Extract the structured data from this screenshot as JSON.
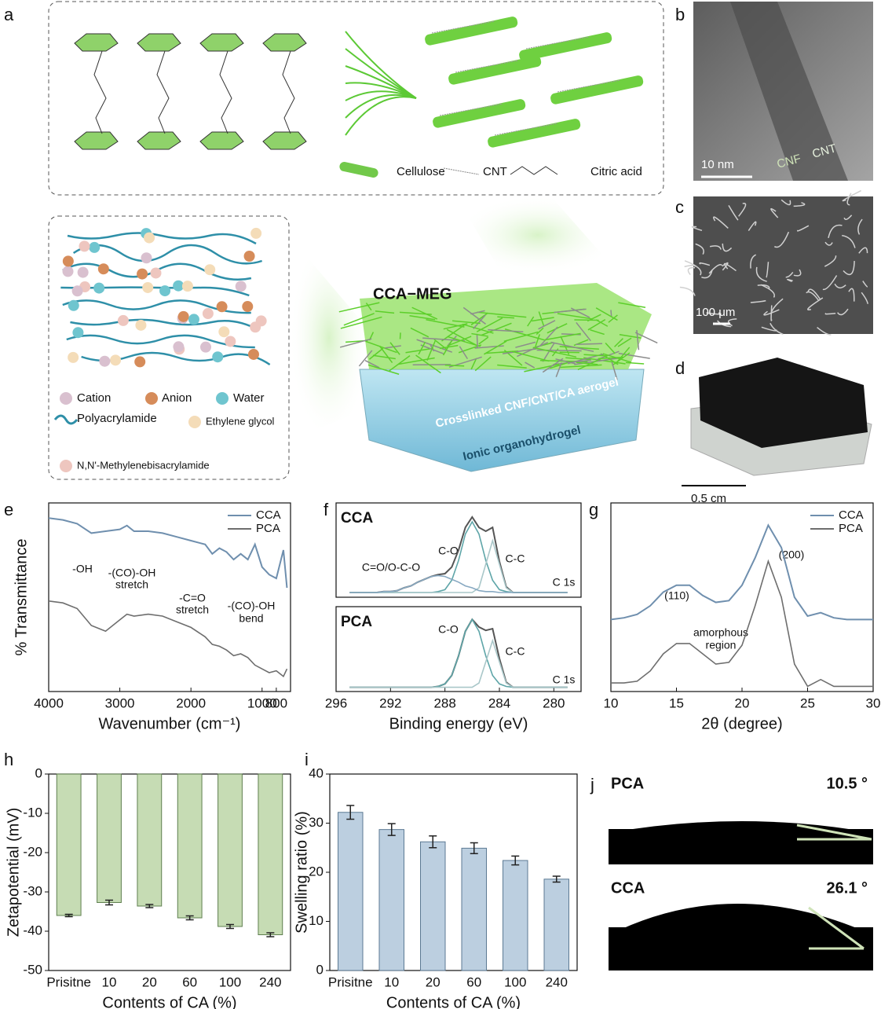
{
  "panels": {
    "a": {
      "label": "a",
      "legend_top": [
        "Cellulose",
        "CNT",
        "Citric acid"
      ],
      "device_title": "CCA−MEG",
      "aerogel_label": "Crosslinked CNF/CNT/CA aerogel",
      "gel_label": "Ionic organohydrogel",
      "legend_bottom": [
        "Cation",
        "Anion",
        "Water",
        "Polyacrylamide",
        "Ethylene glycol",
        "N,N'-Methylenebisacrylamide"
      ]
    },
    "b": {
      "label": "b",
      "scale": "10 nm",
      "tags": [
        "CNF",
        "CNT"
      ]
    },
    "c": {
      "label": "c",
      "scale": "100 μm"
    },
    "d": {
      "label": "d",
      "scale": "0.5 cm"
    },
    "j": {
      "label": "j",
      "rows": [
        {
          "name": "PCA",
          "angle": "10.5 °"
        },
        {
          "name": "CCA",
          "angle": "26.1 °"
        }
      ]
    }
  },
  "chart_data": [
    {
      "panel_label": "e",
      "type": "line",
      "x_label": "Wavenumber (cm⁻¹)",
      "y_label": "% Transmittance",
      "x": [
        4000,
        3800,
        3600,
        3400,
        3200,
        3000,
        2900,
        2800,
        2600,
        2400,
        2200,
        2000,
        1800,
        1700,
        1600,
        1500,
        1400,
        1300,
        1200,
        1100,
        1000,
        900,
        800,
        700,
        650
      ],
      "xlim": [
        4000,
        600
      ],
      "xticks": [
        4000,
        3000,
        2000,
        1000,
        800
      ],
      "ylim": [
        0,
        1
      ],
      "legend": "upper right",
      "series": [
        {
          "name": "CCA",
          "color": "#6f8fae",
          "values": [
            0.92,
            0.91,
            0.89,
            0.84,
            0.85,
            0.86,
            0.88,
            0.85,
            0.85,
            0.84,
            0.82,
            0.8,
            0.78,
            0.73,
            0.76,
            0.74,
            0.7,
            0.73,
            0.7,
            0.78,
            0.66,
            0.62,
            0.6,
            0.75,
            0.55
          ]
        },
        {
          "name": "PCA",
          "color": "#6e6e6e",
          "values": [
            0.48,
            0.47,
            0.44,
            0.35,
            0.32,
            0.38,
            0.41,
            0.4,
            0.41,
            0.4,
            0.37,
            0.34,
            0.29,
            0.25,
            0.24,
            0.22,
            0.19,
            0.2,
            0.18,
            0.14,
            0.12,
            0.1,
            0.11,
            0.08,
            0.12
          ]
        }
      ],
      "annotations": [
        "-OH",
        "-(CO)-OH",
        "stretch",
        "-C=O",
        "stretch",
        "-(CO)-OH",
        "bend"
      ]
    },
    {
      "panel_label": "f",
      "type": "line",
      "title": "CCA",
      "x": [
        295,
        294.5,
        294,
        293.5,
        293,
        292.5,
        292,
        291.5,
        291,
        290.5,
        290,
        289.5,
        289,
        288.5,
        288,
        287.5,
        287,
        286.5,
        286,
        285.5,
        285,
        284.5,
        284,
        283.5,
        283,
        282.5,
        282,
        281.5,
        281,
        280.5,
        280,
        279.5,
        279
      ],
      "xlim": [
        296,
        278
      ],
      "ylim": [
        -0.05,
        0.95
      ],
      "series": [
        {
          "color": "#555555",
          "values": [
            0,
            0,
            0,
            0,
            0,
            0.01,
            0.01,
            0.02,
            0.05,
            0.07,
            0.11,
            0.14,
            0.17,
            0.19,
            0.2,
            0.27,
            0.45,
            0.69,
            0.8,
            0.69,
            0.65,
            0.69,
            0.33,
            0.06,
            0,
            0,
            0,
            0,
            0,
            0,
            0,
            0,
            0
          ]
        },
        {
          "color": "#5ea5a8",
          "values": [
            0,
            0,
            0,
            0,
            0,
            0,
            0,
            0,
            0,
            0,
            0,
            0,
            0,
            0.01,
            0.03,
            0.13,
            0.34,
            0.62,
            0.75,
            0.62,
            0.34,
            0.13,
            0.03,
            0.01,
            0,
            0,
            0,
            0,
            0,
            0,
            0,
            0,
            0
          ]
        },
        {
          "color": "#a9c7c9",
          "values": [
            0,
            0,
            0,
            0,
            0,
            0,
            0,
            0,
            0,
            0,
            0,
            0,
            0,
            0,
            0,
            0,
            0,
            0,
            0,
            0.05,
            0.3,
            0.55,
            0.3,
            0.05,
            0,
            0,
            0,
            0,
            0,
            0,
            0,
            0,
            0
          ]
        },
        {
          "color": "#88a9c2",
          "values": [
            0,
            0,
            0,
            0,
            0,
            0.01,
            0.01,
            0.02,
            0.05,
            0.07,
            0.11,
            0.14,
            0.17,
            0.18,
            0.17,
            0.14,
            0.11,
            0.07,
            0.05,
            0.02,
            0.01,
            0.01,
            0,
            0,
            0,
            0,
            0,
            0,
            0,
            0,
            0,
            0,
            0
          ]
        }
      ],
      "annotations": [
        "C-O",
        "C-C",
        "C=O/O-C-O",
        "C 1s"
      ]
    },
    {
      "type": "line",
      "title": "PCA",
      "x_label": "Binding energy (eV)",
      "x": [
        295,
        294.5,
        294,
        293.5,
        293,
        292.5,
        292,
        291.5,
        291,
        290.5,
        290,
        289.5,
        289,
        288.5,
        288,
        287.5,
        287,
        286.5,
        286,
        285.5,
        285,
        284.5,
        284,
        283.5,
        283,
        282.5,
        282,
        281.5,
        281,
        280.5,
        280,
        279.5,
        279
      ],
      "xlim": [
        296,
        278
      ],
      "xticks": [
        296,
        292,
        288,
        284,
        280
      ],
      "ylim": [
        -0.05,
        0.95
      ],
      "series": [
        {
          "color": "#555555",
          "values": [
            0,
            0,
            0,
            0,
            0,
            0,
            0,
            0,
            0,
            0,
            0,
            0,
            0,
            0.01,
            0.04,
            0.14,
            0.37,
            0.66,
            0.8,
            0.71,
            0.67,
            0.69,
            0.34,
            0.06,
            0,
            0,
            0,
            0,
            0,
            0,
            0,
            0,
            0
          ]
        },
        {
          "color": "#5ea5a8",
          "values": [
            0,
            0,
            0,
            0,
            0,
            0,
            0,
            0,
            0,
            0,
            0,
            0,
            0,
            0.01,
            0.04,
            0.14,
            0.37,
            0.66,
            0.8,
            0.66,
            0.37,
            0.14,
            0.04,
            0.01,
            0,
            0,
            0,
            0,
            0,
            0,
            0,
            0,
            0
          ]
        },
        {
          "color": "#a9c7c9",
          "values": [
            0,
            0,
            0,
            0,
            0,
            0,
            0,
            0,
            0,
            0,
            0,
            0,
            0,
            0,
            0,
            0,
            0,
            0,
            0,
            0.05,
            0.3,
            0.55,
            0.3,
            0.05,
            0,
            0,
            0,
            0,
            0,
            0,
            0,
            0,
            0
          ]
        }
      ],
      "annotations": [
        "C-O",
        "C-C",
        "C 1s"
      ]
    },
    {
      "panel_label": "g",
      "type": "line",
      "x_label": "2θ (degree)",
      "x": [
        10,
        11,
        12,
        13,
        14,
        15,
        16,
        17,
        18,
        19,
        20,
        21,
        22,
        23,
        24,
        25,
        26,
        27,
        28,
        29,
        30
      ],
      "xlim": [
        10,
        30
      ],
      "xticks": [
        10,
        15,
        20,
        25,
        30
      ],
      "ylim": [
        0,
        1.1
      ],
      "legend": "upper right",
      "series": [
        {
          "name": "CCA",
          "color": "#6f8fae",
          "values": [
            0.42,
            0.43,
            0.45,
            0.5,
            0.58,
            0.62,
            0.62,
            0.56,
            0.52,
            0.53,
            0.62,
            0.78,
            0.97,
            0.84,
            0.55,
            0.44,
            0.46,
            0.43,
            0.42,
            0.42,
            0.42
          ]
        },
        {
          "name": "PCA",
          "color": "#6e6e6e",
          "values": [
            0.05,
            0.05,
            0.06,
            0.12,
            0.22,
            0.28,
            0.28,
            0.22,
            0.16,
            0.17,
            0.27,
            0.5,
            0.76,
            0.55,
            0.16,
            0.03,
            0.07,
            0.03,
            0.03,
            0.03,
            0.03
          ]
        }
      ],
      "annotations": [
        "(110)",
        "(200)",
        "amorphous",
        "region"
      ]
    },
    {
      "panel_label": "h",
      "type": "bar",
      "x_label": "Contents of CA (%)",
      "y_label": "Zetapotential (mV)",
      "categories": [
        "Prisitne",
        "10",
        "20",
        "60",
        "100",
        "240"
      ],
      "values": [
        -36,
        -32.7,
        -33.6,
        -36.6,
        -38.8,
        -40.9
      ],
      "errors": [
        0.3,
        0.6,
        0.4,
        0.5,
        0.5,
        0.5
      ],
      "color": "#c6dcb4",
      "edge_color": "#5f7f4f",
      "ylim": [
        -50,
        0
      ],
      "yticks": [
        0,
        -10,
        -20,
        -30,
        -40,
        -50
      ]
    },
    {
      "panel_label": "i",
      "type": "bar",
      "x_label": "Contents of CA (%)",
      "y_label": "Swelling ratio (%)",
      "categories": [
        "Prisitne",
        "10",
        "20",
        "60",
        "100",
        "240"
      ],
      "values": [
        32.2,
        28.7,
        26.2,
        24.9,
        22.4,
        18.6
      ],
      "errors": [
        1.4,
        1.2,
        1.2,
        1.1,
        0.9,
        0.6
      ],
      "color": "#bccfe0",
      "edge_color": "#5c7a93",
      "ylim": [
        0,
        40
      ],
      "yticks": [
        0,
        10,
        20,
        30,
        40
      ]
    }
  ]
}
